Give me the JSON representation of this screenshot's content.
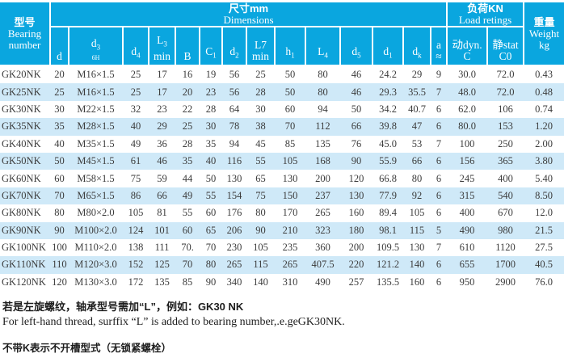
{
  "header": {
    "bearing_cn": "型号",
    "bearing_en": "Bearing number",
    "dims_cn": "尺寸mm",
    "dims_en": "Dimensions",
    "load_cn": "负荷KN",
    "load_en": "Load retings",
    "weight_cn": "重量",
    "weight_en": "Weight",
    "weight_unit": "kg",
    "dim_cols": [
      {
        "base": "d",
        "sub": "",
        "line2": ""
      },
      {
        "base": "d",
        "sub": "3",
        "line2": "6H",
        "small": true
      },
      {
        "base": "d",
        "sub": "4",
        "line2": ""
      },
      {
        "base": "L",
        "sub": "3",
        "line2": "min"
      },
      {
        "base": "B",
        "sub": "",
        "line2": ""
      },
      {
        "base": "C",
        "sub": "1",
        "line2": ""
      },
      {
        "base": "d",
        "sub": "2",
        "line2": ""
      },
      {
        "base": "L7",
        "sub": "",
        "line2": "min"
      },
      {
        "base": "h",
        "sub": "1",
        "line2": ""
      },
      {
        "base": "L",
        "sub": "4",
        "line2": ""
      },
      {
        "base": "d",
        "sub": "5",
        "line2": ""
      },
      {
        "base": "d",
        "sub": "1",
        "line2": ""
      },
      {
        "base": "d",
        "sub": "k",
        "line2": ""
      },
      {
        "base": "a",
        "sub": "",
        "line2": "≈"
      }
    ],
    "load_cols": [
      {
        "line1": "动dyn.",
        "line2": "C"
      },
      {
        "line1": "静stat",
        "line2": "C0"
      }
    ]
  },
  "rows": [
    [
      "GK20NK",
      "20",
      "M16×1.5",
      "25",
      "17",
      "16",
      "19",
      "56",
      "25",
      "50",
      "80",
      "46",
      "24.2",
      "29",
      "9",
      "30.0",
      "72.0",
      "0.43"
    ],
    [
      "GK25NK",
      "25",
      "M16×1.5",
      "25",
      "17",
      "20",
      "23",
      "56",
      "28",
      "50",
      "80",
      "46",
      "29.3",
      "35.5",
      "7",
      "48.0",
      "72.0",
      "0.48"
    ],
    [
      "GK30NK",
      "30",
      "M22×1.5",
      "32",
      "23",
      "22",
      "28",
      "64",
      "30",
      "60",
      "94",
      "50",
      "34.2",
      "40.7",
      "6",
      "62.0",
      "106",
      "0.74"
    ],
    [
      "GK35NK",
      "35",
      "M28×1.5",
      "40",
      "29",
      "25",
      "30",
      "78",
      "38",
      "70",
      "112",
      "66",
      "39.8",
      "47",
      "6",
      "80.0",
      "153",
      "1.20"
    ],
    [
      "GK40NK",
      "40",
      "M35×1.5",
      "49",
      "36",
      "28",
      "35",
      "94",
      "45",
      "85",
      "135",
      "76",
      "45.0",
      "53",
      "7",
      "100",
      "250",
      "2.00"
    ],
    [
      "GK50NK",
      "50",
      "M45×1.5",
      "61",
      "46",
      "35",
      "40",
      "116",
      "55",
      "105",
      "168",
      "90",
      "55.9",
      "66",
      "6",
      "156",
      "365",
      "3.80"
    ],
    [
      "GK60NK",
      "60",
      "M58×1.5",
      "75",
      "59",
      "44",
      "50",
      "130",
      "65",
      "130",
      "200",
      "120",
      "66.8",
      "80",
      "6",
      "245",
      "400",
      "5.40"
    ],
    [
      "GK70NK",
      "70",
      "M65×1.5",
      "86",
      "66",
      "49",
      "55",
      "154",
      "75",
      "150",
      "237",
      "130",
      "77.9",
      "92",
      "6",
      "315",
      "540",
      "8.50"
    ],
    [
      "GK80NK",
      "80",
      "M80×2.0",
      "105",
      "81",
      "55",
      "60",
      "176",
      "80",
      "170",
      "265",
      "160",
      "89.4",
      "105",
      "6",
      "400",
      "670",
      "12.0"
    ],
    [
      "GK90NK",
      "90",
      "M100×2.0",
      "124",
      "101",
      "60",
      "65",
      "206",
      "90",
      "210",
      "323",
      "180",
      "98.1",
      "115",
      "5",
      "490",
      "980",
      "21.5"
    ],
    [
      "GK100NK",
      "100",
      "M110×2.0",
      "138",
      "111",
      "70.",
      "70",
      "230",
      "105",
      "235",
      "360",
      "200",
      "109.5",
      "130",
      "7",
      "610",
      "1120",
      "27.5"
    ],
    [
      "GK110NK",
      "110",
      "M120×3.0",
      "152",
      "125",
      "70",
      "80",
      "265",
      "115",
      "265",
      "407.5",
      "220",
      "121.2",
      "140",
      "6",
      "655",
      "1700",
      "40.5"
    ],
    [
      "GK120NK",
      "120",
      "M130×3.0",
      "172",
      "135",
      "85",
      "90",
      "340",
      "140",
      "310",
      "490",
      "257",
      "135.5",
      "160",
      "6",
      "950",
      "2900",
      "76.0"
    ]
  ],
  "footer": {
    "line1_cn": "若是左旋螺纹，轴承型号需加“L”，例如：GK30 NK",
    "line2_en": "For left-hand thread, surffix “L” is added to bearing number,.e.geGK30NK.",
    "line3_cn": "不带K表示不开槽型式（无锁紧螺栓）"
  },
  "colors": {
    "header_bg": "#0aa6df",
    "stripe": "#cfe9f8",
    "header_text": "#ffffff",
    "body_text": "#3c3c3c"
  }
}
